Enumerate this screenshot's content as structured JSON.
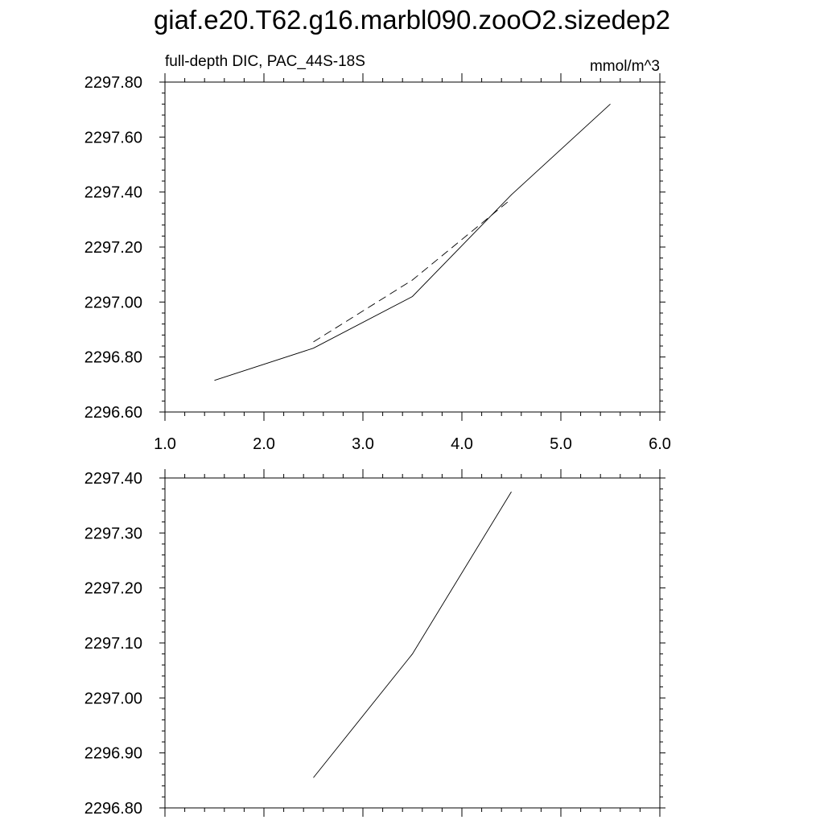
{
  "title": "giaf.e20.T62.g16.marbl090.zooO2.sizedep2",
  "colors": {
    "line": "#000000",
    "background": "#ffffff"
  },
  "chart_data": [
    {
      "type": "line",
      "subtitle_left": "full-depth DIC, PAC_44S-18S",
      "subtitle_right": "mmol/m^3",
      "xlim": [
        1.0,
        6.0
      ],
      "ylim": [
        2296.6,
        2297.8
      ],
      "xticks": [
        1.0,
        2.0,
        3.0,
        4.0,
        5.0,
        6.0
      ],
      "xtick_labels": [
        "1.0",
        "2.0",
        "3.0",
        "4.0",
        "5.0",
        "6.0"
      ],
      "yticks": [
        2296.6,
        2296.8,
        2297.0,
        2297.2,
        2297.4,
        2297.6,
        2297.8
      ],
      "ytick_labels": [
        "2296.60",
        "2296.80",
        "2297.00",
        "2297.20",
        "2297.40",
        "2297.60",
        "2297.80"
      ],
      "grid": false,
      "series": [
        {
          "style": "solid",
          "x": [
            1.5,
            2.5,
            3.5,
            4.5,
            5.5
          ],
          "y": [
            2296.715,
            2296.832,
            2297.02,
            2297.39,
            2297.72
          ]
        },
        {
          "style": "dashed",
          "x": [
            2.5,
            3.5,
            4.5
          ],
          "y": [
            2296.855,
            2297.08,
            2297.375
          ]
        }
      ]
    },
    {
      "type": "line",
      "xlim": [
        1.0,
        6.0
      ],
      "ylim": [
        2296.8,
        2297.4
      ],
      "xticks": [
        1.0,
        2.0,
        3.0,
        4.0,
        5.0,
        6.0
      ],
      "yticks": [
        2296.8,
        2296.9,
        2297.0,
        2297.1,
        2297.2,
        2297.3,
        2297.4
      ],
      "ytick_labels": [
        "2296.80",
        "2296.90",
        "2297.00",
        "2297.10",
        "2297.20",
        "2297.30",
        "2297.40"
      ],
      "grid": false,
      "series": [
        {
          "style": "solid",
          "x": [
            2.5,
            3.5,
            4.5
          ],
          "y": [
            2296.855,
            2297.08,
            2297.375
          ]
        }
      ]
    }
  ]
}
